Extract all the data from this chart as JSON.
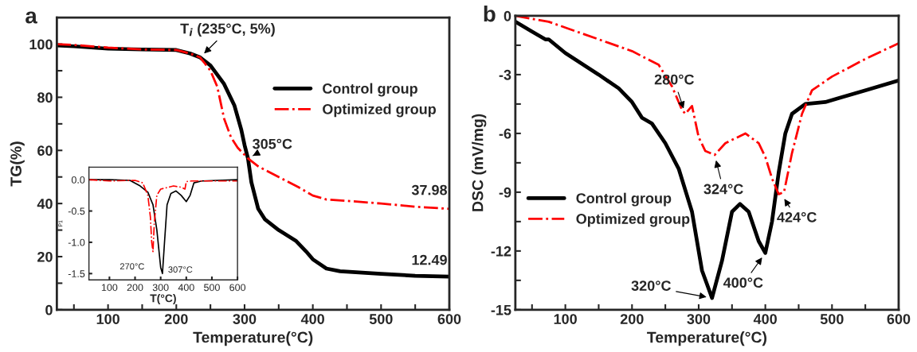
{
  "chart_data": [
    {
      "type": "line",
      "title": "a",
      "xlabel": "Temperature(°C)",
      "ylabel": "TG(%)",
      "xlim": [
        25,
        600
      ],
      "ylim": [
        0,
        110
      ],
      "xticks": [
        {
          "value": 50,
          "label": null
        },
        100,
        {
          "value": 150,
          "label": null
        },
        200,
        {
          "value": 250,
          "label": null
        },
        300,
        {
          "value": 350,
          "label": null
        },
        400,
        {
          "value": 450,
          "label": null
        },
        500,
        {
          "value": 550,
          "label": null
        },
        600
      ],
      "yticks": [
        0,
        {
          "value": 10,
          "label": null
        },
        20,
        {
          "value": 30,
          "label": null
        },
        40,
        {
          "value": 50,
          "label": null
        },
        60,
        {
          "value": 70,
          "label": null
        },
        80,
        {
          "value": 90,
          "label": null
        },
        100
      ],
      "legend": "top right",
      "grid": false,
      "series": [
        {
          "name": "Control group",
          "color": "#000000",
          "line_style": "solid",
          "x": [
            25,
            50,
            100,
            150,
            200,
            220,
            235,
            250,
            270,
            285,
            295,
            300,
            305,
            310,
            320,
            330,
            350,
            375,
            390,
            400,
            420,
            440,
            500,
            550,
            600
          ],
          "values": [
            99.5,
            99.2,
            98.3,
            98,
            97.8,
            96.5,
            95,
            92,
            85,
            77,
            68,
            62,
            57,
            48,
            38,
            34,
            30,
            26,
            22,
            19,
            15.5,
            14.5,
            13.5,
            12.8,
            12.49
          ]
        },
        {
          "name": "Optimized group",
          "color": "#ff0000",
          "line_style": "dashdot",
          "x": [
            25,
            50,
            100,
            150,
            200,
            220,
            235,
            250,
            260,
            265,
            270,
            280,
            290,
            305,
            320,
            350,
            380,
            400,
            420,
            450,
            500,
            550,
            600
          ],
          "values": [
            100,
            99.7,
            98.7,
            98,
            97.8,
            96.5,
            95,
            90,
            84,
            78,
            72,
            65,
            61,
            57,
            54,
            50,
            46,
            43,
            41.5,
            41,
            40,
            38.8,
            37.98
          ]
        }
      ],
      "annotations": [
        {
          "text": "T$_{i}$ (235°C, 5%)",
          "x": 235,
          "y": 95
        },
        {
          "text": "305°C",
          "x": 305,
          "y": 57
        },
        {
          "text": "37.98",
          "x": 600,
          "y": 37.98
        },
        {
          "text": "12.49",
          "x": 600,
          "y": 12.49
        }
      ]
    },
    {
      "type": "line",
      "xlabel": "T(°C)",
      "ylabel": "P1",
      "xlim": [
        20,
        600
      ],
      "ylim": [
        -1.6,
        0.2
      ],
      "xticks": [
        100,
        200,
        300,
        400,
        500,
        600
      ],
      "yticks": [
        {
          "value": 0,
          "label": "0.0"
        },
        {
          "value": -0.5,
          "label": "-0.5"
        },
        {
          "value": -1.0,
          "label": "-1.0"
        },
        {
          "value": -1.5,
          "label": "-1.5"
        }
      ],
      "grid": false,
      "series": [
        {
          "color": "#000000",
          "line_style": "solid",
          "x": [
            20,
            100,
            180,
            220,
            250,
            270,
            285,
            300,
            307,
            315,
            325,
            340,
            360,
            380,
            400,
            415,
            430,
            460,
            600
          ],
          "values": [
            0,
            0,
            -0.01,
            -0.1,
            -0.2,
            -0.4,
            -0.8,
            -1.4,
            -1.5,
            -1.0,
            -0.4,
            -0.22,
            -0.18,
            -0.25,
            -0.35,
            -0.25,
            -0.05,
            -0.02,
            0
          ]
        },
        {
          "color": "#ff0000",
          "line_style": "dashdot",
          "x": [
            20,
            100,
            200,
            230,
            250,
            260,
            265,
            270,
            275,
            285,
            300,
            350,
            380,
            395,
            400,
            420,
            600
          ],
          "values": [
            0,
            -0.02,
            -0.01,
            -0.05,
            -0.25,
            -0.6,
            -1.0,
            -1.15,
            -0.7,
            -0.25,
            -0.15,
            -0.1,
            -0.12,
            -0.15,
            -0.03,
            -0.02,
            -0.02
          ]
        }
      ],
      "annotations": [
        {
          "text": "270°C",
          "x": 270,
          "y": -1.15
        },
        {
          "text": "307°C",
          "x": 307,
          "y": -1.5
        }
      ]
    },
    {
      "type": "line",
      "title": "b",
      "xlabel": "Temperature(°C)",
      "ylabel": "DSC (mV/mg)",
      "xlim": [
        25,
        600
      ],
      "ylim": [
        -15,
        0
      ],
      "xticks": [
        {
          "value": 50,
          "label": null
        },
        100,
        {
          "value": 150,
          "label": null
        },
        200,
        {
          "value": 250,
          "label": null
        },
        300,
        {
          "value": 350,
          "label": null
        },
        400,
        {
          "value": 450,
          "label": null
        },
        500,
        {
          "value": 550,
          "label": null
        },
        600
      ],
      "yticks": [
        {
          "value": -15,
          "label": "-15"
        },
        {
          "value": -13.5,
          "label": null
        },
        {
          "value": -12,
          "label": "-12"
        },
        {
          "value": -10.5,
          "label": null
        },
        {
          "value": -9,
          "label": "-9"
        },
        {
          "value": -7.5,
          "label": null
        },
        {
          "value": -6,
          "label": "-6"
        },
        {
          "value": -4.5,
          "label": null
        },
        {
          "value": -3,
          "label": "-3"
        },
        {
          "value": -1.5,
          "label": null
        },
        0
      ],
      "legend": "left",
      "grid": false,
      "series": [
        {
          "name": "Control group",
          "color": "#000000",
          "line_style": "solid",
          "x": [
            25,
            50,
            70,
            75,
            100,
            150,
            180,
            200,
            215,
            230,
            250,
            270,
            290,
            305,
            320,
            335,
            350,
            362,
            375,
            390,
            400,
            410,
            420,
            430,
            440,
            460,
            490,
            510,
            550,
            600
          ],
          "values": [
            -0.3,
            -0.8,
            -1.2,
            -1.2,
            -1.9,
            -3.0,
            -3.7,
            -4.4,
            -5.2,
            -5.5,
            -6.5,
            -7.8,
            -10,
            -13,
            -14.4,
            -12.5,
            -10,
            -9.6,
            -10,
            -11.5,
            -12.1,
            -10.5,
            -8,
            -6,
            -5,
            -4.5,
            -4.4,
            -4.2,
            -3.8,
            -3.3
          ]
        },
        {
          "name": "Optimized group",
          "color": "#ff0000",
          "line_style": "dashdot",
          "x": [
            25,
            75,
            100,
            150,
            200,
            240,
            260,
            275,
            280,
            290,
            300,
            310,
            324,
            340,
            370,
            390,
            400,
            410,
            420,
            428,
            440,
            455,
            470,
            500,
            550,
            600
          ],
          "values": [
            0,
            -0.3,
            -0.6,
            -1.2,
            -1.8,
            -2.5,
            -3.6,
            -4.8,
            -5.0,
            -4.6,
            -6.2,
            -6.9,
            -7.1,
            -6.5,
            -6.0,
            -6.5,
            -7.2,
            -8.3,
            -9.1,
            -9.0,
            -7,
            -5,
            -3.8,
            -3.1,
            -2.2,
            -1.4
          ]
        }
      ],
      "annotations": [
        {
          "text": "280°C",
          "x": 280,
          "y": -5.0
        },
        {
          "text": "324°C",
          "x": 324,
          "y": -7.1
        },
        {
          "text": "424°C",
          "x": 424,
          "y": -9.1
        },
        {
          "text": "400°C",
          "x": 400,
          "y": -12.1
        },
        {
          "text": "320°C",
          "x": 320,
          "y": -14.4
        }
      ]
    }
  ]
}
